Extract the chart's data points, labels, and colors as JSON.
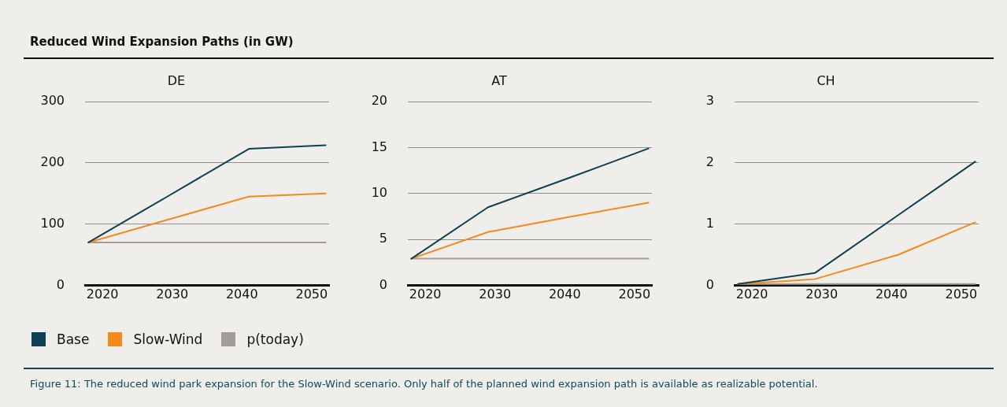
{
  "chart_data": [
    {
      "type": "line",
      "title": "DE",
      "x": [
        2018,
        2029,
        2041,
        2052
      ],
      "xlim": [
        2017.5,
        2052.5
      ],
      "xticks": [
        2020,
        2030,
        2040,
        2050
      ],
      "ylim": [
        0,
        300
      ],
      "yticks": [
        0,
        100,
        200,
        300
      ],
      "grid": "y",
      "legend": "bottom",
      "annotations": [
        "Reduced Wind Expansion Paths (in GW)",
        "Figure 11: The reduced wind park expansion for the Slow-Wind scenario. Only half of the planned wind expansion path is available as realizable potential."
      ],
      "series": [
        {
          "name": "Base",
          "color": "#0d3f55",
          "values": [
            70,
            143,
            223,
            229
          ]
        },
        {
          "name": "Slow-Wind",
          "color": "#f28a1c",
          "values": [
            70,
            106,
            145,
            150
          ]
        },
        {
          "name": "p(today)",
          "color": "#a39c94",
          "values": [
            70,
            70,
            70,
            70
          ]
        }
      ]
    },
    {
      "type": "line",
      "title": "AT",
      "x": [
        2018,
        2029,
        2041,
        2052
      ],
      "xlim": [
        2017.5,
        2052.5
      ],
      "xticks": [
        2020,
        2030,
        2040,
        2050
      ],
      "ylim": [
        0,
        20
      ],
      "yticks": [
        0,
        5,
        10,
        15,
        20
      ],
      "grid": "y",
      "series": [
        {
          "color": "#0d3f55",
          "values": [
            2.9,
            8.5,
            11.8,
            14.9
          ]
        },
        {
          "color": "#f28a1c",
          "values": [
            2.9,
            5.8,
            7.5,
            9.0
          ]
        },
        {
          "color": "#a39c94",
          "values": [
            2.9,
            2.9,
            2.9,
            2.9
          ]
        }
      ]
    },
    {
      "type": "line",
      "title": "CH",
      "x": [
        2018,
        2029,
        2041,
        2052
      ],
      "xlim": [
        2017.5,
        2052.5
      ],
      "xticks": [
        2020,
        2030,
        2040,
        2050
      ],
      "ylim": [
        0,
        3
      ],
      "yticks": [
        0,
        1,
        2,
        3
      ],
      "grid": "y",
      "series": [
        {
          "color": "#0d3f55",
          "values": [
            0.02,
            0.2,
            1.15,
            2.02
          ]
        },
        {
          "color": "#f28a1c",
          "values": [
            0.02,
            0.1,
            0.5,
            1.03
          ]
        },
        {
          "color": "#a39c94",
          "values": [
            0.02,
            0.02,
            0.02,
            0.02
          ]
        }
      ]
    }
  ]
}
